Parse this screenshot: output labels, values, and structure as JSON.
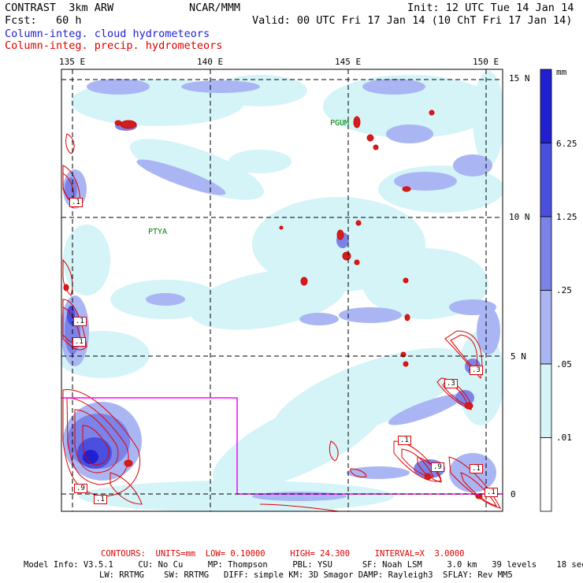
{
  "header": {
    "model": "CONTRAST  3km ARW",
    "center": "NCAR/MMM",
    "init": "Init: 12 UTC Tue 14 Jan 14",
    "fcst": "Fcst:   60 h",
    "valid": "Valid: 00 UTC Fri 17 Jan 14 (10 ChT Fri 17 Jan 14)",
    "field1": "Column-integ. cloud hydrometeors",
    "field2": "Column-integ. precip. hydrometeors"
  },
  "map": {
    "lon_labels": [
      "135 E",
      "140 E",
      "145 E",
      "150 E"
    ],
    "lat_labels": [
      "15 N",
      "10 N",
      "5 N",
      "0"
    ],
    "stations": [
      "PGUM",
      "PTYA"
    ],
    "contour_labels": [
      ".1",
      ".1",
      ".1",
      ".9",
      ".1",
      ".3",
      ".1",
      ".9",
      ".1",
      ".1",
      ".3"
    ],
    "colors": {
      "level1": "#d4f4f8",
      "level2": "#aab6f4",
      "level3": "#7b83e8",
      "level4": "#4b4fe0",
      "level5": "#2020d0",
      "contour": "#e00000",
      "box": "#ff00ff",
      "station": "#008000"
    }
  },
  "colorbar": {
    "unit": "mm",
    "labels": [
      "6.25",
      "1.25",
      ".25",
      ".05",
      ".01"
    ],
    "colors": [
      "#2020d0",
      "#4b4fe0",
      "#7b83e8",
      "#aab6f4",
      "#d4f4f8",
      "#ffffff"
    ]
  },
  "footer": {
    "contours": "CONTOURS:  UNITS=mm  LOW= 0.10000     HIGH= 24.300     INTERVAL=X  3.0000",
    "line1": "Model Info: V3.5.1     CU: No Cu     MP: Thompson     PBL: YSU      SF: Noah LSM     3.0 km   39 levels    18 sec",
    "line2": "LW: RRTMG    SW: RRTMG   DIFF: simple KM: 3D Smagor DAMP: Rayleigh3  SFLAY: Rev MM5"
  }
}
